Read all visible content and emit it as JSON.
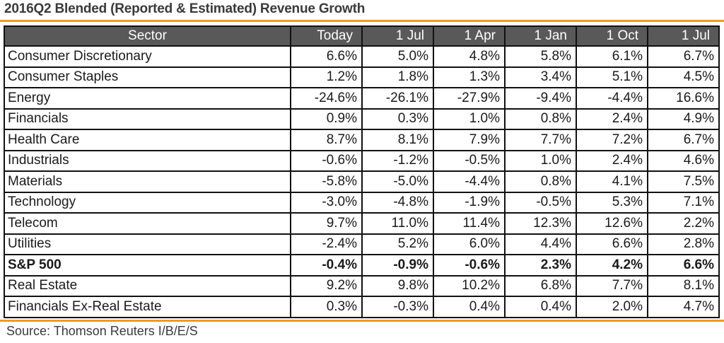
{
  "title": "2016Q2 Blended (Reported & Estimated) Revenue Growth",
  "columns": [
    "Sector",
    "Today",
    "1 Jul",
    "1 Apr",
    "1 Jan",
    "1 Oct",
    "1 Jul"
  ],
  "rows": [
    {
      "sector": "Consumer Discretionary",
      "values": [
        "6.6%",
        "5.0%",
        "4.8%",
        "5.8%",
        "6.1%",
        "6.7%"
      ],
      "bold": false
    },
    {
      "sector": "Consumer Staples",
      "values": [
        "1.2%",
        "1.8%",
        "1.3%",
        "3.4%",
        "5.1%",
        "4.5%"
      ],
      "bold": false
    },
    {
      "sector": "Energy",
      "values": [
        "-24.6%",
        "-26.1%",
        "-27.9%",
        "-9.4%",
        "-4.4%",
        "16.6%"
      ],
      "bold": false
    },
    {
      "sector": "Financials",
      "values": [
        "0.9%",
        "0.3%",
        "1.0%",
        "0.8%",
        "2.4%",
        "4.9%"
      ],
      "bold": false
    },
    {
      "sector": "Health Care",
      "values": [
        "8.7%",
        "8.1%",
        "7.9%",
        "7.7%",
        "7.2%",
        "6.7%"
      ],
      "bold": false
    },
    {
      "sector": "Industrials",
      "values": [
        "-0.6%",
        "-1.2%",
        "-0.5%",
        "1.0%",
        "2.4%",
        "4.6%"
      ],
      "bold": false
    },
    {
      "sector": "Materials",
      "values": [
        "-5.8%",
        "-5.0%",
        "-4.4%",
        "0.8%",
        "4.1%",
        "7.5%"
      ],
      "bold": false
    },
    {
      "sector": "Technology",
      "values": [
        "-3.0%",
        "-4.8%",
        "-1.9%",
        "-0.5%",
        "5.3%",
        "7.1%"
      ],
      "bold": false
    },
    {
      "sector": "Telecom",
      "values": [
        "9.7%",
        "11.0%",
        "11.4%",
        "12.3%",
        "12.6%",
        "2.2%"
      ],
      "bold": false
    },
    {
      "sector": "Utilities",
      "values": [
        "-2.4%",
        "5.2%",
        "6.0%",
        "4.4%",
        "6.6%",
        "2.8%"
      ],
      "bold": false
    },
    {
      "sector": "S&P 500",
      "values": [
        "-0.4%",
        "-0.9%",
        "-0.6%",
        "2.3%",
        "4.2%",
        "6.6%"
      ],
      "bold": true
    },
    {
      "sector": "Real Estate",
      "values": [
        "9.2%",
        "9.8%",
        "10.2%",
        "6.8%",
        "7.7%",
        "8.1%"
      ],
      "bold": false
    },
    {
      "sector": "Financials Ex-Real Estate",
      "values": [
        "0.3%",
        "-0.3%",
        "0.4%",
        "0.4%",
        "2.0%",
        "4.7%"
      ],
      "bold": false
    }
  ],
  "source": "Source: Thomson Reuters I/B/E/S",
  "colors": {
    "accent": "#f29a1f",
    "header_bg": "#595959",
    "header_text": "#ffffff"
  }
}
